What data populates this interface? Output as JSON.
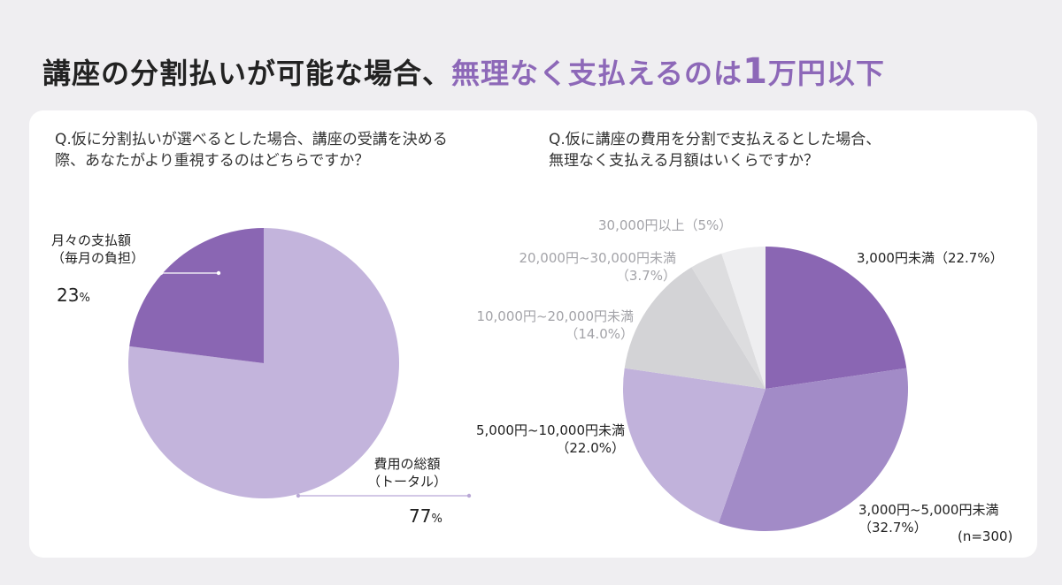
{
  "headline": {
    "part1": "講座の分割払いが可能な場合、",
    "part2": "無理なく支払えるのは",
    "part3": "1",
    "part4": "万円以下"
  },
  "colors": {
    "accent": "#8d68b8",
    "pie1_a": "#8a66b3",
    "pie1_b": "#c3b4dc",
    "pie2": [
      "#8a66b3",
      "#a28bc7",
      "#c1b2db",
      "#d3d3d6",
      "#dddddf",
      "#eeeef0"
    ]
  },
  "chart_data": [
    {
      "type": "pie",
      "title": "Q.仮に分割払いが選べるとした場合、講座の受講を決める際、あなたがより重視するのはどちらですか？",
      "title_lines": [
        "Q.仮に分割払いが選べるとした場合、講座の受講を決める",
        "際、あなたがより重視するのはどちらですか？"
      ],
      "slices": [
        {
          "label_lines": [
            "月々の支払額",
            "（毎月の負担）"
          ],
          "value": 23,
          "value_text": "23",
          "unit": "%"
        },
        {
          "label_lines": [
            "費用の総額",
            "（トータル）"
          ],
          "value": 77,
          "value_text": "77",
          "unit": "%"
        }
      ]
    },
    {
      "type": "pie",
      "title": "Q.仮に講座の費用を分割で支払えるとした場合、無理なく支払える月額はいくらですか？",
      "title_lines": [
        "Q.仮に講座の費用を分割で支払えるとした場合、",
        "無理なく支払える月額はいくらですか？"
      ],
      "slices": [
        {
          "label": "3,000円未満",
          "value": 22.7,
          "value_text": "（22.7%）"
        },
        {
          "label": "3,000円~5,000円未満",
          "value": 32.7,
          "value_text": "（32.7%）"
        },
        {
          "label": "5,000円~10,000円未満",
          "value": 22.0,
          "value_text": "（22.0%）"
        },
        {
          "label": "10,000円~20,000円未満",
          "value": 14.0,
          "value_text": "（14.0%）"
        },
        {
          "label": "20,000円~30,000円未満",
          "value": 3.7,
          "value_text": "（3.7%）"
        },
        {
          "label": "30,000円以上",
          "value": 5.0,
          "value_text": "（5%）"
        }
      ],
      "note": "(n=300)"
    }
  ]
}
